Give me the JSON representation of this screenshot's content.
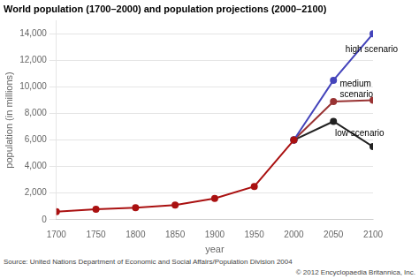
{
  "chart_data": {
    "type": "line",
    "title": "World population (1700–2000) and population projections (2000–2100)",
    "xlabel": "year",
    "ylabel": "population (in millions)",
    "footer": [
      "Source: United Nations Department of Economic and Social Affairs/Population Division 2004",
      "© 2012 Encyclopaedia Britannica, Inc."
    ],
    "series": [
      {
        "x": [
          1700,
          1750,
          1800,
          1850,
          1900,
          1950,
          2000
        ],
        "values": [
          600,
          790,
          900,
          1100,
          1600,
          2500,
          6000
        ],
        "color": "#aa1111",
        "marker": "circle"
      },
      {
        "x": [
          2000,
          2050,
          2100
        ],
        "values": [
          6000,
          10500,
          14000
        ],
        "color": "#4444bb",
        "marker": "circle"
      },
      {
        "x": [
          2000,
          2050,
          2100
        ],
        "values": [
          6000,
          8900,
          9000
        ],
        "color": "#993333",
        "marker": "circle"
      },
      {
        "x": [
          2000,
          2050,
          2100
        ],
        "values": [
          6000,
          7400,
          5500
        ],
        "color": "#222222",
        "marker": "circle"
      }
    ],
    "annotations": [
      {
        "text": "high scenario",
        "x": 2065,
        "y": 12800
      },
      {
        "text": "medium\nscenario",
        "x": 2058,
        "y": 9800
      },
      {
        "text": "low scenario",
        "x": 2052,
        "y": 6500
      }
    ],
    "xlim": [
      1700,
      2100
    ],
    "xticks": [
      1700,
      1750,
      1800,
      1850,
      1900,
      1950,
      2000,
      2050,
      2100
    ],
    "ylim": [
      0,
      15000
    ],
    "yticks": [
      {
        "value": 0,
        "label": "0"
      },
      {
        "value": 2000,
        "label": "2,000"
      },
      {
        "value": 4000,
        "label": "4,000"
      },
      {
        "value": 6000,
        "label": "6,000"
      },
      {
        "value": 8000,
        "label": "8,000"
      },
      {
        "value": 10000,
        "label": "10,000"
      },
      {
        "value": 12000,
        "label": "12,000"
      },
      {
        "value": 14000,
        "label": "14,000"
      }
    ],
    "grid": "y"
  }
}
